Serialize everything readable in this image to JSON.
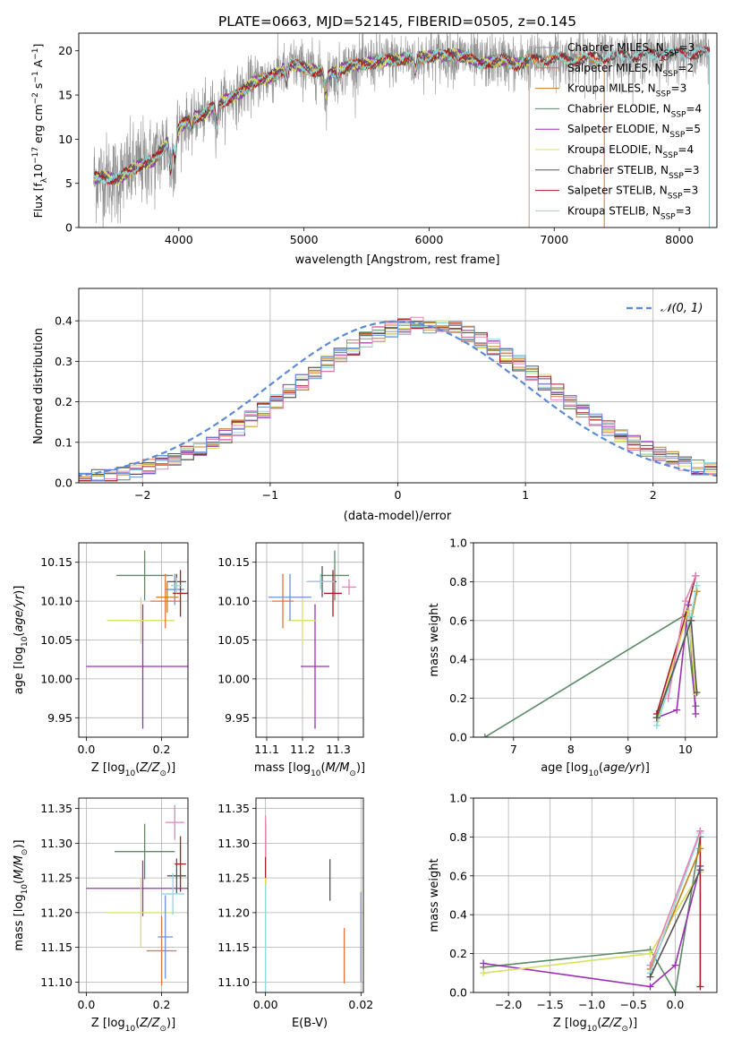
{
  "colors": {
    "chabrier_miles": "#8f8f8f",
    "salpeter_miles": "#e8703a",
    "kroupa_miles": "#c77f16",
    "chabrier_elodie": "#5a8a66",
    "salpeter_elodie": "#9b2fb3",
    "kroupa_elodie": "#d8e060",
    "chabrier_stelib": "#555555",
    "salpeter_stelib": "#a61c22",
    "kroupa_stelib": "#8cd8e0",
    "pink": "#e582b5",
    "blue": "#6a8fe0",
    "normal_curve": "#5b8bd6",
    "grid": "#b0b0b0"
  },
  "chart_data": [
    {
      "id": "spectrum",
      "type": "line",
      "title": "PLATE=0663, MJD=52145, FIBERID=0505, z=0.145",
      "xlabel": "wavelength [Angstrom, rest frame]",
      "ylabel": "Flux [f$_\\lambda$10$^{-17}$ erg cm$^{-2}$ s$^{-1}$ A$^{-1}$]",
      "ylabel_parts": {
        "main": "Flux [f",
        "sub1": "λ",
        "mid": "10",
        "sup1": "−17",
        "rest": " erg cm",
        "sup2": "−2",
        "rest2": " s",
        "sup3": "−1",
        "rest3": " A",
        "sup4": "−1",
        "end": "]"
      },
      "xlim": [
        3200,
        8300
      ],
      "ylim": [
        0,
        22
      ],
      "xticks": [
        4000,
        5000,
        6000,
        7000,
        8000
      ],
      "yticks": [
        0,
        5,
        10,
        15,
        20
      ],
      "grid": false,
      "legend_position": "upper right",
      "legend": [
        {
          "name": "Chabrier MILES",
          "nssp": "3",
          "color_key": "chabrier_miles"
        },
        {
          "name": "Salpeter MILES",
          "nssp": "2",
          "color_key": "salpeter_miles"
        },
        {
          "name": "Kroupa MILES",
          "nssp": "3",
          "color_key": "kroupa_miles"
        },
        {
          "name": "Chabrier ELODIE",
          "nssp": "4",
          "color_key": "chabrier_elodie"
        },
        {
          "name": "Salpeter ELODIE",
          "nssp": "5",
          "color_key": "salpeter_elodie"
        },
        {
          "name": "Kroupa ELODIE",
          "nssp": "4",
          "color_key": "kroupa_elodie"
        },
        {
          "name": "Chabrier STELIB",
          "nssp": "3",
          "color_key": "chabrier_stelib"
        },
        {
          "name": "Salpeter STELIB",
          "nssp": "3",
          "color_key": "salpeter_stelib"
        },
        {
          "name": "Kroupa STELIB",
          "nssp": "3",
          "color_key": "kroupa_stelib"
        }
      ],
      "continuum": [
        [
          3320,
          5.6
        ],
        [
          3400,
          5.8
        ],
        [
          3500,
          5.4
        ],
        [
          3600,
          6.3
        ],
        [
          3700,
          7.2
        ],
        [
          3800,
          7.6
        ],
        [
          3900,
          9.5
        ],
        [
          4000,
          11.2
        ],
        [
          4100,
          12.5
        ],
        [
          4200,
          12.7
        ],
        [
          4300,
          14.0
        ],
        [
          4400,
          14.6
        ],
        [
          4500,
          15.2
        ],
        [
          4600,
          16.5
        ],
        [
          4700,
          16.8
        ],
        [
          4800,
          17.6
        ],
        [
          4900,
          18.5
        ],
        [
          5000,
          18.1
        ],
        [
          5100,
          17.7
        ],
        [
          5200,
          17.4
        ],
        [
          5300,
          18.0
        ],
        [
          5400,
          18.4
        ],
        [
          5500,
          18.6
        ],
        [
          5600,
          18.8
        ],
        [
          5700,
          19.0
        ],
        [
          5800,
          19.1
        ],
        [
          5900,
          19.2
        ],
        [
          6000,
          19.4
        ],
        [
          6100,
          19.5
        ],
        [
          6200,
          19.6
        ],
        [
          6300,
          19.3
        ],
        [
          6400,
          18.6
        ],
        [
          6500,
          18.8
        ],
        [
          6600,
          19.0
        ],
        [
          6700,
          18.4
        ],
        [
          6800,
          18.9
        ],
        [
          7000,
          19.1
        ],
        [
          7200,
          19.0
        ],
        [
          7400,
          19.3
        ],
        [
          7600,
          19.4
        ],
        [
          7800,
          19.6
        ],
        [
          8000,
          19.7
        ],
        [
          8200,
          19.8
        ]
      ],
      "absorption_lines": [
        [
          3934,
          3.5
        ],
        [
          3969,
          3.0
        ],
        [
          4102,
          1.5
        ],
        [
          4304,
          2.5
        ],
        [
          4861,
          1.5
        ],
        [
          5175,
          2.5
        ],
        [
          5270,
          1.0
        ],
        [
          5890,
          1.5
        ]
      ]
    },
    {
      "id": "residuals",
      "type": "histogram",
      "xlabel": "(data-model)/error",
      "ylabel": "Normed distribution",
      "xlim": [
        -2.5,
        2.5
      ],
      "ylim": [
        0,
        0.48
      ],
      "xticks": [
        -2,
        -1,
        0,
        1,
        2
      ],
      "yticks": [
        0.0,
        0.1,
        0.2,
        0.3,
        0.4
      ],
      "xtick_labels": [
        "−2",
        "−1",
        "0",
        "1",
        "2"
      ],
      "ytick_labels": [
        "0.0",
        "0.1",
        "0.2",
        "0.3",
        "0.4"
      ],
      "grid": true,
      "legend": [
        {
          "name": "𝒩(0, 1)",
          "color_key": "normal_curve",
          "style": "dashed"
        }
      ],
      "bin_width": 0.1
    },
    {
      "id": "age_vs_Z",
      "type": "scatter_errorbar",
      "xlabel": "Z [log$_{10}$(Z/Z$_\\odot$)]",
      "ylabel": "age  [log$_{10}$(age/yr)]",
      "xlim": [
        -0.02,
        0.27
      ],
      "ylim": [
        9.925,
        10.175
      ],
      "xticks": [
        0.0,
        0.2
      ],
      "xtick_labels": [
        "0.0",
        "0.2"
      ],
      "yticks": [
        9.95,
        10.0,
        10.05,
        10.1,
        10.15
      ],
      "ytick_labels": [
        "9.95",
        "10.00",
        "10.05",
        "10.10",
        "10.15"
      ],
      "grid": true,
      "points": [
        {
          "x": 0.155,
          "xerr": 0.075,
          "y": 10.133,
          "yerr": 0.032,
          "color_key": "chabrier_elodie"
        },
        {
          "x": 0.15,
          "xerr": 0.15,
          "y": 10.016,
          "yerr": 0.08,
          "color_key": "salpeter_elodie"
        },
        {
          "x": 0.145,
          "xerr": 0.09,
          "y": 10.075,
          "yerr": 0.03,
          "color_key": "kroupa_elodie"
        },
        {
          "x": 0.21,
          "xerr": 0.04,
          "y": 10.1,
          "yerr": 0.035,
          "color_key": "salpeter_miles"
        },
        {
          "x": 0.215,
          "xerr": 0.03,
          "y": 10.105,
          "yerr": 0.02,
          "color_key": "kroupa_miles"
        },
        {
          "x": 0.235,
          "xerr": 0.025,
          "y": 10.115,
          "yerr": 0.02,
          "color_key": "blue"
        },
        {
          "x": 0.24,
          "xerr": 0.025,
          "y": 10.125,
          "yerr": 0.01,
          "color_key": "chabrier_stelib"
        },
        {
          "x": 0.25,
          "xerr": 0.02,
          "y": 10.11,
          "yerr": 0.03,
          "color_key": "salpeter_stelib"
        },
        {
          "x": 0.24,
          "xerr": 0.015,
          "y": 10.12,
          "yerr": 0.01,
          "color_key": "kroupa_stelib"
        }
      ]
    },
    {
      "id": "age_vs_mass",
      "type": "scatter_errorbar",
      "xlabel": "mass [log$_{10}$(M/M$_\\odot$)]",
      "ylabel": "",
      "xlim": [
        11.07,
        11.37
      ],
      "ylim": [
        9.925,
        10.175
      ],
      "xticks": [
        11.1,
        11.2,
        11.3
      ],
      "xtick_labels": [
        "11.1",
        "11.2",
        "11.3"
      ],
      "yticks": [
        9.95,
        10.0,
        10.05,
        10.1,
        10.15
      ],
      "ytick_labels": [
        "9.95",
        "10.00",
        "10.05",
        "10.10",
        "10.15"
      ],
      "grid": true,
      "points": [
        {
          "x": 11.29,
          "xerr": 0.04,
          "y": 10.133,
          "yerr": 0.032,
          "color_key": "chabrier_elodie"
        },
        {
          "x": 11.235,
          "xerr": 0.04,
          "y": 10.016,
          "yerr": 0.08,
          "color_key": "salpeter_elodie"
        },
        {
          "x": 11.2,
          "xerr": 0.04,
          "y": 10.075,
          "yerr": 0.03,
          "color_key": "kroupa_elodie"
        },
        {
          "x": 11.145,
          "xerr": 0.03,
          "y": 10.1,
          "yerr": 0.035,
          "color_key": "salpeter_miles"
        },
        {
          "x": 11.165,
          "xerr": 0.06,
          "y": 10.105,
          "yerr": 0.03,
          "color_key": "blue"
        },
        {
          "x": 11.255,
          "xerr": 0.04,
          "y": 10.125,
          "yerr": 0.02,
          "color_key": "chabrier_stelib"
        },
        {
          "x": 11.285,
          "xerr": 0.025,
          "y": 10.11,
          "yerr": 0.03,
          "color_key": "salpeter_stelib"
        },
        {
          "x": 11.33,
          "xerr": 0.02,
          "y": 10.118,
          "yerr": 0.01,
          "color_key": "pink"
        },
        {
          "x": 11.25,
          "xerr": 0.04,
          "y": 10.125,
          "yerr": 0.01,
          "color_key": "kroupa_stelib"
        }
      ]
    },
    {
      "id": "weight_vs_age",
      "type": "line",
      "xlabel": "age  [log$_{10}$(age/yr)]",
      "ylabel": "mass weight",
      "xlim": [
        6.3,
        10.55
      ],
      "ylim": [
        0,
        1.0
      ],
      "xticks": [
        7,
        8,
        9,
        10
      ],
      "xtick_labels": [
        "7",
        "8",
        "9",
        "10"
      ],
      "yticks": [
        0.0,
        0.2,
        0.4,
        0.6,
        0.8,
        1.0
      ],
      "ytick_labels": [
        "0.0",
        "0.2",
        "0.4",
        "0.6",
        "0.8",
        "1.0"
      ],
      "grid": true,
      "series": [
        {
          "color_key": "chabrier_elodie",
          "x": [
            6.5,
            10.0,
            10.18
          ],
          "y": [
            0.0,
            0.63,
            0.16
          ]
        },
        {
          "color_key": "salpeter_stelib",
          "x": [
            9.5,
            10.0,
            10.18
          ],
          "y": [
            0.12,
            0.62,
            0.83
          ]
        },
        {
          "color_key": "salpeter_elodie",
          "x": [
            9.5,
            9.85,
            10.05,
            10.18
          ],
          "y": [
            0.1,
            0.14,
            0.68,
            0.12
          ]
        },
        {
          "color_key": "kroupa_elodie",
          "x": [
            9.5,
            10.05,
            10.18
          ],
          "y": [
            0.08,
            0.65,
            0.22
          ]
        },
        {
          "color_key": "kroupa_miles",
          "x": [
            9.5,
            10.1,
            10.2
          ],
          "y": [
            0.1,
            0.6,
            0.75
          ]
        },
        {
          "color_key": "kroupa_stelib",
          "x": [
            9.5,
            10.1,
            10.2
          ],
          "y": [
            0.06,
            0.62,
            0.78
          ]
        },
        {
          "color_key": "pink",
          "x": [
            9.7,
            10.0,
            10.18
          ],
          "y": [
            0.2,
            0.7,
            0.83
          ]
        },
        {
          "color_key": "chabrier_stelib",
          "x": [
            9.5,
            10.1,
            10.2
          ],
          "y": [
            0.1,
            0.6,
            0.23
          ]
        }
      ]
    },
    {
      "id": "mass_vs_Z",
      "type": "scatter_errorbar",
      "xlabel": "Z [log$_{10}$(Z/Z$_\\odot$)]",
      "ylabel": "mass [log$_{10}$(M/M$_\\odot$)]",
      "xlim": [
        -0.02,
        0.27
      ],
      "ylim": [
        11.085,
        11.365
      ],
      "xticks": [
        0.0,
        0.2
      ],
      "xtick_labels": [
        "0.0",
        "0.2"
      ],
      "yticks": [
        11.1,
        11.15,
        11.2,
        11.25,
        11.3,
        11.35
      ],
      "ytick_labels": [
        "11.10",
        "11.15",
        "11.20",
        "11.25",
        "11.30",
        "11.35"
      ],
      "grid": true,
      "points": [
        {
          "x": 0.155,
          "xerr": 0.08,
          "y": 11.288,
          "yerr": 0.04,
          "color_key": "chabrier_elodie"
        },
        {
          "x": 0.15,
          "xerr": 0.15,
          "y": 11.235,
          "yerr": 0.04,
          "color_key": "salpeter_elodie"
        },
        {
          "x": 0.145,
          "xerr": 0.09,
          "y": 11.2,
          "yerr": 0.05,
          "color_key": "kroupa_elodie"
        },
        {
          "x": 0.2,
          "xerr": 0.04,
          "y": 11.145,
          "yerr": 0.05,
          "color_key": "salpeter_miles"
        },
        {
          "x": 0.21,
          "xerr": 0.02,
          "y": 11.165,
          "yerr": 0.06,
          "color_key": "blue"
        },
        {
          "x": 0.24,
          "xerr": 0.025,
          "y": 11.253,
          "yerr": 0.025,
          "color_key": "chabrier_stelib"
        },
        {
          "x": 0.25,
          "xerr": 0.015,
          "y": 11.27,
          "yerr": 0.04,
          "color_key": "salpeter_stelib"
        },
        {
          "x": 0.235,
          "xerr": 0.025,
          "y": 11.33,
          "yerr": 0.025,
          "color_key": "pink"
        },
        {
          "x": 0.23,
          "xerr": 0.03,
          "y": 11.227,
          "yerr": 0.03,
          "color_key": "kroupa_stelib"
        }
      ]
    },
    {
      "id": "mass_vs_ebv",
      "type": "scatter_errorbar",
      "xlabel": "E(B-V)",
      "ylabel": "",
      "xlim": [
        -0.002,
        0.0205
      ],
      "ylim": [
        11.085,
        11.365
      ],
      "xticks": [
        0.0,
        0.02
      ],
      "xtick_labels": [
        "0.00",
        "0.02"
      ],
      "yticks": [
        11.1,
        11.15,
        11.2,
        11.25,
        11.3,
        11.35
      ],
      "ytick_labels": [
        "11.10",
        "11.15",
        "11.20",
        "11.25",
        "11.30",
        "11.35"
      ],
      "grid": true,
      "points": [
        {
          "x": 0.0,
          "xerr": 0,
          "y": 11.285,
          "yerr": 0.045,
          "color_key": "salpeter_stelib"
        },
        {
          "x": 0.0,
          "xerr": 0,
          "y": 11.2,
          "yerr": 0.05,
          "color_key": "kroupa_elodie"
        },
        {
          "x": 0.0,
          "xerr": 0,
          "y": 11.31,
          "yerr": 0.03,
          "color_key": "pink"
        },
        {
          "x": 0.0,
          "xerr": 0,
          "y": 11.16,
          "yerr": 0.08,
          "color_key": "kroupa_stelib"
        },
        {
          "x": 0.0135,
          "xerr": 0,
          "y": 11.247,
          "yerr": 0.03,
          "color_key": "chabrier_stelib"
        },
        {
          "x": 0.0165,
          "xerr": 0,
          "y": 11.138,
          "yerr": 0.04,
          "color_key": "salpeter_miles"
        },
        {
          "x": 0.02,
          "xerr": 0,
          "y": 11.165,
          "yerr": 0.065,
          "color_key": "blue"
        }
      ]
    },
    {
      "id": "weight_vs_Z",
      "type": "line",
      "xlabel": "Z [log$_{10}$(Z/Z$_\\odot$)]",
      "ylabel": "mass weight",
      "xlim": [
        -2.42,
        0.5
      ],
      "ylim": [
        0,
        1.0
      ],
      "xticks": [
        -2.0,
        -1.5,
        -1.0,
        -0.5,
        0.0
      ],
      "xtick_labels": [
        "−2.0",
        "−1.5",
        "−1.0",
        "−0.5",
        "0.0"
      ],
      "yticks": [
        0.0,
        0.2,
        0.4,
        0.6,
        0.8,
        1.0
      ],
      "ytick_labels": [
        "0.0",
        "0.2",
        "0.4",
        "0.6",
        "0.8",
        "1.0"
      ],
      "grid": true,
      "series": [
        {
          "color_key": "chabrier_elodie",
          "x": [
            -2.3,
            -0.3,
            0.0,
            0.3
          ],
          "y": [
            0.13,
            0.22,
            0.0,
            0.8
          ]
        },
        {
          "color_key": "salpeter_elodie",
          "x": [
            -2.3,
            -0.3,
            0.0,
            0.3
          ],
          "y": [
            0.15,
            0.03,
            0.14,
            0.65
          ]
        },
        {
          "color_key": "kroupa_elodie",
          "x": [
            -2.3,
            -0.3,
            0.3
          ],
          "y": [
            0.1,
            0.2,
            0.62
          ]
        },
        {
          "color_key": "salpeter_stelib",
          "x": [
            0.3,
            0.3
          ],
          "y": [
            0.83,
            0.03
          ]
        },
        {
          "color_key": "kroupa_miles",
          "x": [
            -0.3,
            0.3
          ],
          "y": [
            0.12,
            0.74
          ]
        },
        {
          "color_key": "kroupa_stelib",
          "x": [
            -0.3,
            0.3
          ],
          "y": [
            0.1,
            0.82
          ]
        },
        {
          "color_key": "pink",
          "x": [
            -0.3,
            0.3
          ],
          "y": [
            0.14,
            0.83
          ]
        },
        {
          "color_key": "chabrier_stelib",
          "x": [
            -0.3,
            0.3
          ],
          "y": [
            0.08,
            0.63
          ]
        }
      ]
    }
  ]
}
